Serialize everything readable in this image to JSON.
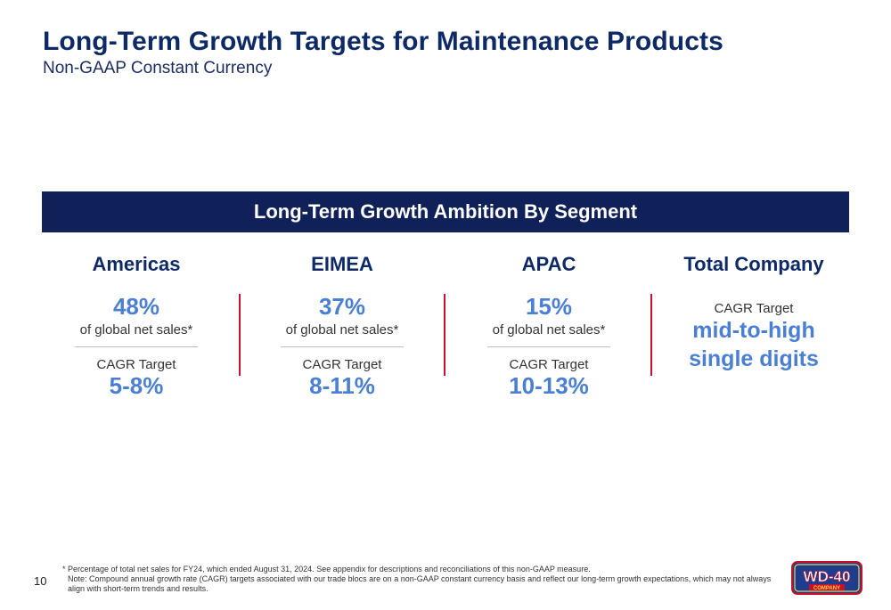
{
  "header": {
    "title": "Long-Term Growth Targets for Maintenance Products",
    "subtitle": "Non-GAAP Constant Currency"
  },
  "banner": {
    "label": "Long-Term Growth Ambition By Segment"
  },
  "segments": [
    {
      "name": "Americas",
      "share": "48%",
      "share_label": "of global net sales*",
      "cagr_label": "CAGR Target",
      "cagr_value": "5-8%"
    },
    {
      "name": "EIMEA",
      "share": "37%",
      "share_label": "of global net sales*",
      "cagr_label": "CAGR Target",
      "cagr_value": "8-11%"
    },
    {
      "name": "APAC",
      "share": "15%",
      "share_label": "of global net sales*",
      "cagr_label": "CAGR Target",
      "cagr_value": "10-13%"
    }
  ],
  "total": {
    "name": "Total Company",
    "cagr_label": "CAGR Target",
    "cagr_value_line1": "mid-to-high",
    "cagr_value_line2": "single digits"
  },
  "footer": {
    "page_number": "10",
    "footnote_1": "* Percentage of total net sales for FY24, which ended August 31, 2024. See appendix for descriptions and reconciliations of this non-GAAP measure.",
    "footnote_2": "Note: Compound annual growth rate (CAGR) targets associated with our trade blocs are on a non-GAAP constant currency basis and reflect our long-term growth expectations, which may not always align with short-term trends and results."
  },
  "logo": {
    "text": "WD-40",
    "subtext": "COMPANY"
  },
  "colors": {
    "navy": "#0f2158",
    "title_navy": "#0e2a66",
    "accent_blue": "#4a7fd2",
    "divider_red": "#c8102e"
  }
}
